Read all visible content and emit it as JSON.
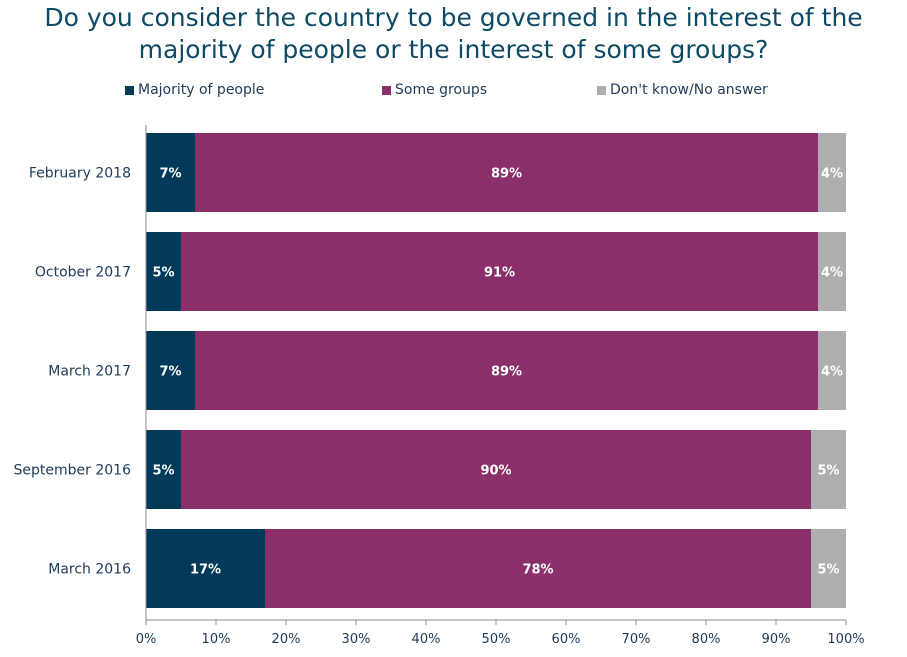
{
  "title_lines": [
    "Do you consider the country to be governed in the interest of the",
    "majority of people or the interest of some groups?"
  ],
  "legend": [
    {
      "label": "Majority of people",
      "color": "#033a5a"
    },
    {
      "label": "Some groups",
      "color": "#8b2f6a"
    },
    {
      "label": "Don't know/No answer",
      "color": "#aeaeb0"
    }
  ],
  "chart_data": {
    "type": "bar",
    "orientation": "horizontal",
    "stacked": true,
    "categories": [
      "February 2018",
      "October 2017",
      "March 2017",
      "September 2016",
      "March 2016"
    ],
    "series": [
      {
        "name": "Majority of people",
        "values": [
          7,
          5,
          7,
          5,
          17
        ],
        "labels": [
          "7%",
          "5%",
          "7%",
          "5%",
          "17%"
        ],
        "color": "#033a5a"
      },
      {
        "name": "Some groups",
        "values": [
          89,
          91,
          89,
          90,
          78
        ],
        "labels": [
          "89%",
          "91%",
          "89%",
          "90%",
          "78%"
        ],
        "color": "#8b2f6a"
      },
      {
        "name": "Don't know/No answer",
        "values": [
          4,
          4,
          4,
          5,
          5
        ],
        "labels": [
          "4%",
          "4%",
          "4%",
          "5%",
          "5%"
        ],
        "color": "#aeaeb0"
      }
    ],
    "xlim": [
      0,
      100
    ],
    "xticks": [
      "0%",
      "10%",
      "20%",
      "30%",
      "40%",
      "50%",
      "60%",
      "70%",
      "80%",
      "90%",
      "100%"
    ],
    "grid": false,
    "legend_position": "top"
  }
}
